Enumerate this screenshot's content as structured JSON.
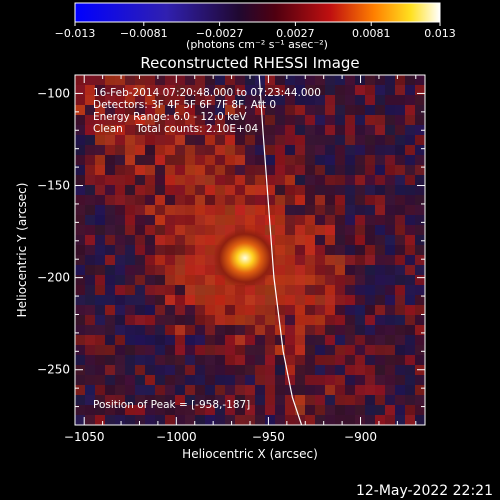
{
  "colorbar": {
    "ticks": [
      "-0.013",
      "-0.0081",
      "-0.0027",
      "0.0027",
      "0.0081",
      "0.013"
    ],
    "unit_label": "(photons cm⁻² s⁻¹ asec⁻²)"
  },
  "title": "Reconstructed RHESSI Image",
  "info": {
    "time": "16-Feb-2014 07:20:48.000 to 07:23:44.000",
    "detectors": "Detectors: 3F 4F 5F 6F 7F 8F, Att 0",
    "energy": "Energy Range: 6.0 - 12.0 keV",
    "clean": "Clean    Total counts: 2.10E+04"
  },
  "peak_label": "Position of Peak = [-958,-187]",
  "footer_date": "12-May-2022 22:21",
  "chart_data": {
    "type": "heatmap",
    "title": "Reconstructed RHESSI Image",
    "xlabel": "Heliocentric X (arcsec)",
    "ylabel": "Heliocentric Y (arcsec)",
    "xlim": [
      -1055,
      -865
    ],
    "ylim": [
      -280,
      -90
    ],
    "x_ticks": [
      -1050,
      -1000,
      -950,
      -900
    ],
    "y_ticks": [
      -100,
      -150,
      -200,
      -250
    ],
    "x_tick_labels": [
      "−1050",
      "−1000",
      "−950",
      "−900"
    ],
    "y_tick_labels": [
      "−100",
      "−150",
      "−200",
      "−250"
    ],
    "colorscale_range": [
      -0.013,
      0.013
    ],
    "peak": [
      -958,
      -187
    ],
    "limb_curve": [
      [
        -955,
        -90
      ],
      [
        -953,
        -120
      ],
      [
        -950,
        -160
      ],
      [
        -947,
        -200
      ],
      [
        -942,
        -240
      ],
      [
        -937,
        -265
      ],
      [
        -932,
        -280
      ]
    ]
  }
}
